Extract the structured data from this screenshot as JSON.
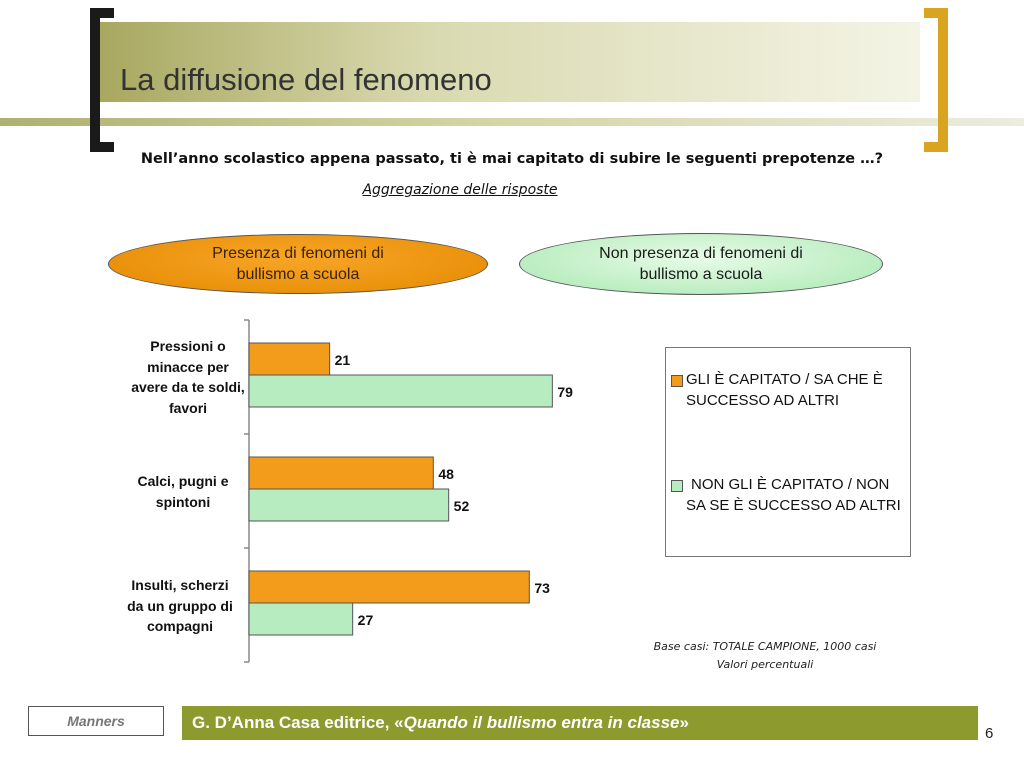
{
  "slide": {
    "title": "La diffusione del fenomeno",
    "question": "Nell’anno scolastico appena passato, ti è mai capitato di subire le seguenti prepotenze …?",
    "subtitle": "Aggregazione delle risposte",
    "ellipse_presence": "Presenza di fenomeni di bullismo a scuola",
    "ellipse_absence": "Non presenza di fenomeni di bullismo a scuola",
    "base_note_line1": "Base casi: TOTALE CAMPIONE, 1000 casi",
    "base_note_line2": "Valori percentuali",
    "footer_brand": "Manners",
    "footer_text_prefix": "G. D’Anna Casa editrice, «",
    "footer_text_title": "Quando il bullismo entra in classe",
    "footer_text_suffix": "»",
    "page_number": "6"
  },
  "colors": {
    "series1_fill": "#f39b1a",
    "series2_fill": "#b7ecc0",
    "bar_stroke": "#555555",
    "footer_bar": "#8d9a2e",
    "bracket_right": "#d9a420"
  },
  "chart_data": {
    "type": "bar",
    "orientation": "horizontal",
    "categories": [
      "Pressioni o minacce per avere da te soldi, favori",
      "Calci, pugni e spintoni",
      "Insulti, scherzi da un gruppo di compagni"
    ],
    "series": [
      {
        "name": "GLI È CAPITATO / SA CHE È SUCCESSO AD ALTRI",
        "values": [
          21,
          48,
          73
        ]
      },
      {
        "name": "NON GLI È CAPITATO / NON SA SE È SUCCESSO AD ALTRI",
        "values": [
          79,
          52,
          27
        ]
      }
    ],
    "xlim": [
      0,
      100
    ],
    "data_labels": true,
    "grid": false,
    "legend_position": "right"
  }
}
